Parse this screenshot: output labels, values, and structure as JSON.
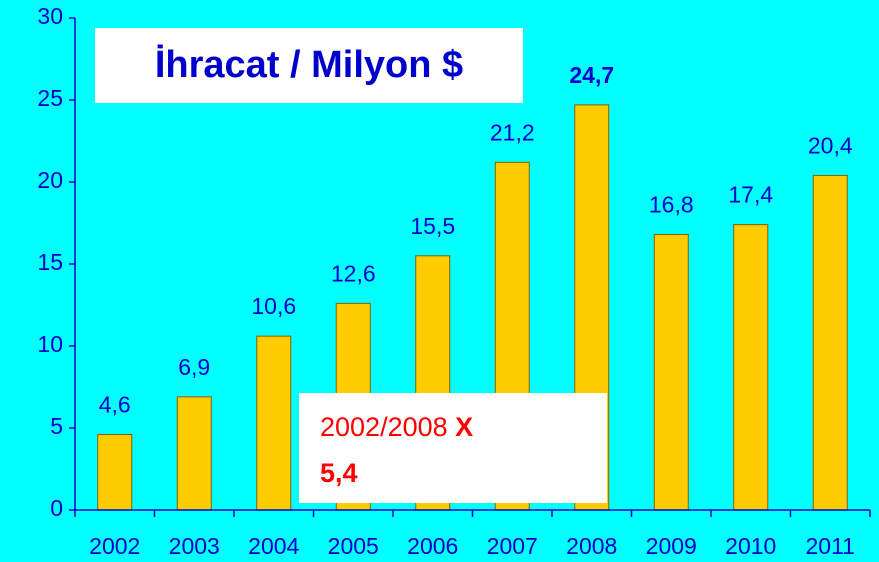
{
  "chart_data": {
    "type": "bar",
    "title": "İhracat / Milyon $",
    "categories": [
      "2002",
      "2003",
      "2004",
      "2005",
      "2006",
      "2007",
      "2008",
      "2009",
      "2010",
      "2011"
    ],
    "values": [
      4.6,
      6.9,
      10.6,
      12.6,
      15.5,
      21.2,
      24.7,
      16.8,
      17.4,
      20.4
    ],
    "value_labels": [
      "4,6",
      "6,9",
      "10,6",
      "12,6",
      "15,5",
      "21,2",
      "24,7",
      "16,8",
      "17,4",
      "20,4"
    ],
    "color": "#ffcc00",
    "ylim": [
      0,
      30
    ],
    "yticks": [
      0,
      5,
      10,
      15,
      20,
      25,
      30
    ],
    "grid": false,
    "annotation": {
      "text": "2002/2008",
      "symbol": "X",
      "factor": "5,4"
    }
  }
}
